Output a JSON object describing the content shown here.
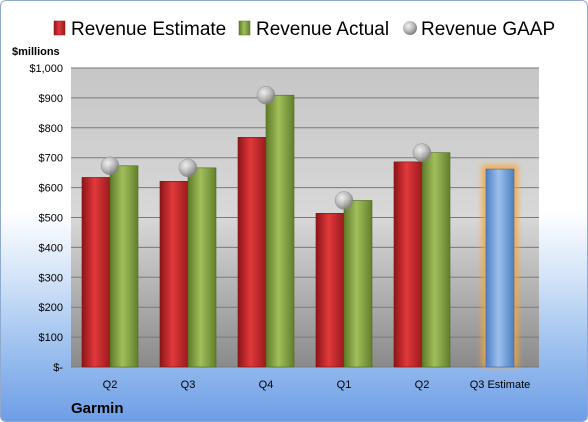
{
  "chart_data": {
    "type": "bar",
    "title": "",
    "company": "Garmin",
    "ylabel": "$millions",
    "xlabel": "",
    "ylim": [
      0,
      1000
    ],
    "y_ticks": [
      "$-",
      "$100",
      "$200",
      "$300",
      "$400",
      "$500",
      "$600",
      "$700",
      "$800",
      "$900",
      "$1,000"
    ],
    "categories": [
      "Q2",
      "Q3",
      "Q4",
      "Q1",
      "Q2",
      "Q3 Estimate"
    ],
    "series": [
      {
        "name": "Revenue Estimate",
        "kind": "bar",
        "color": "#c0252a",
        "values": [
          634,
          621,
          768,
          514,
          686,
          null
        ]
      },
      {
        "name": "Revenue Actual",
        "kind": "bar",
        "color": "#7f9c3e",
        "values": [
          673,
          666,
          909,
          557,
          717,
          null
        ]
      },
      {
        "name": "Revenue GAAP",
        "kind": "marker",
        "color": "#b0b0b0",
        "values": [
          673,
          666,
          909,
          557,
          717,
          null
        ]
      },
      {
        "name": "",
        "kind": "bar",
        "color": "#6f9fdb",
        "values": [
          null,
          null,
          null,
          null,
          null,
          662
        ]
      }
    ],
    "grid": true,
    "legend": "top"
  }
}
